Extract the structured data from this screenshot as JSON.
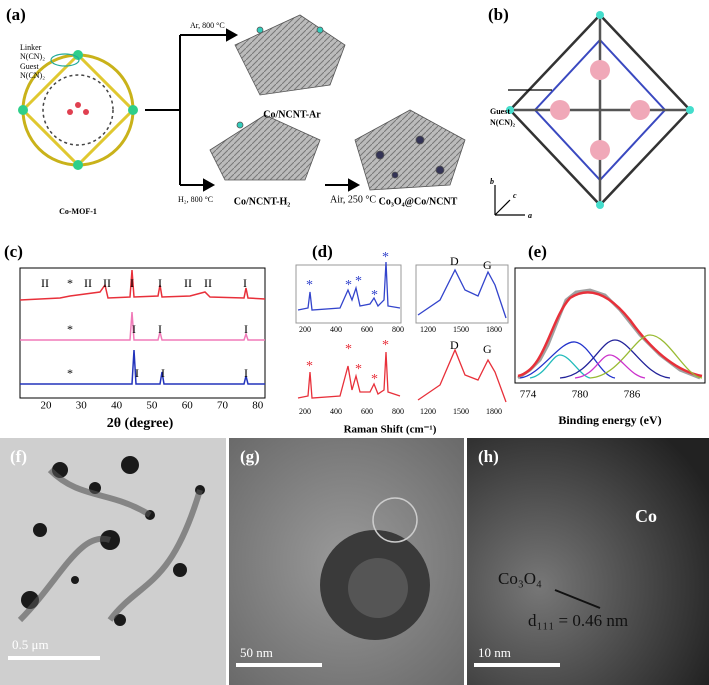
{
  "panel_a": {
    "label": "(a)",
    "linker": "Linker",
    "linker_formula": "N(CN)₂",
    "guest": "Guest",
    "guest_formula": "N(CN)₂",
    "mof": "Co-MOF-1",
    "ar_condition": "Ar, 800 °C",
    "ar_product": "Co/NCNT-Ar",
    "h2_condition": "H₂, 800 °C",
    "h2_product": "Co/NCNT-H₂",
    "air_condition": "Air, 250 °C",
    "air_product": "Co₃O₄@Co/NCNT"
  },
  "panel_b": {
    "label": "(b)",
    "guest": "Guest",
    "guest_formula": "N(CN)₂",
    "axes": [
      "b",
      "c",
      "a"
    ]
  },
  "panel_c": {
    "label": "(c)",
    "x_ticks": [
      "20",
      "30",
      "40",
      "50",
      "60",
      "70",
      "80"
    ],
    "x_label": "2θ (degree)",
    "red_peaks": [
      "II",
      "*",
      "II",
      "II",
      "I",
      "I",
      "II",
      "II",
      "I"
    ],
    "pink_peaks": [
      "*",
      "I",
      "I",
      "I"
    ],
    "blue_peaks": [
      "*",
      "I",
      "I",
      "I"
    ]
  },
  "panel_d": {
    "label": "(d)",
    "low_ticks": [
      "200",
      "400",
      "600",
      "800"
    ],
    "high_ticks": [
      "1200",
      "1500",
      "1800"
    ],
    "band_d": "D",
    "band_g": "G",
    "x_label": "Raman Shift (cm⁻¹)"
  },
  "panel_e": {
    "label": "(e)",
    "x_ticks": [
      "774",
      "780",
      "786"
    ],
    "x_label": "Binding energy (eV)"
  },
  "panel_f": {
    "label": "(f)",
    "scale": "0.5 μm"
  },
  "panel_g": {
    "label": "(g)",
    "scale": "50 nm"
  },
  "panel_h": {
    "label": "(h)",
    "scale": "10 nm",
    "co": "Co",
    "oxide": "Co₃O₄",
    "spacing": "d₁₁₁ = 0.46 nm"
  }
}
